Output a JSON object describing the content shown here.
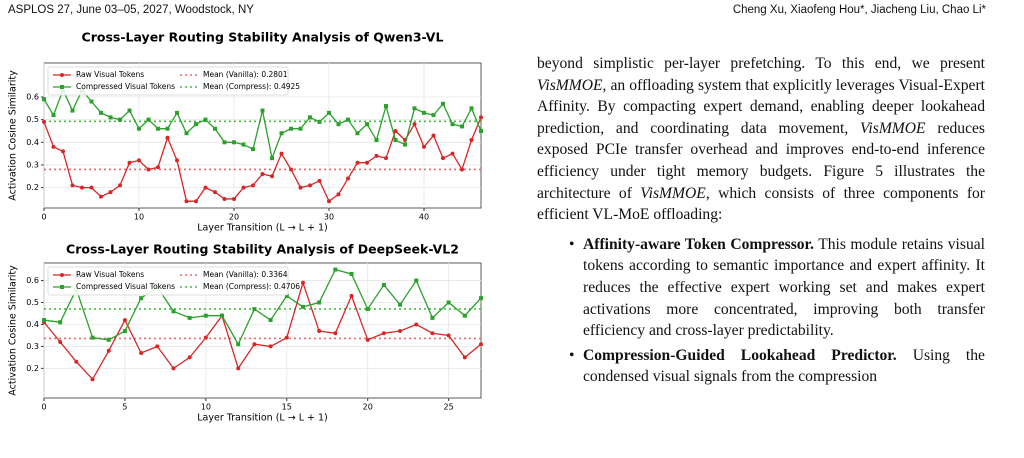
{
  "header": {
    "left": "ASPLOS 27, June 03–05, 2027, Woodstock, NY",
    "right": "Cheng Xu, Xiaofeng Hou*, Jiacheng Liu, Chao Li*"
  },
  "chart_data": [
    {
      "type": "line",
      "title": "Cross-Layer Routing Stability Analysis of Qwen3-VL",
      "x_label": "Layer Transition (L → L + 1)",
      "y_label": "Activation Cosine Similarity",
      "x": [
        0,
        1,
        2,
        3,
        4,
        5,
        6,
        7,
        8,
        9,
        10,
        11,
        12,
        13,
        14,
        15,
        16,
        17,
        18,
        19,
        20,
        21,
        22,
        23,
        24,
        25,
        26,
        27,
        28,
        29,
        30,
        31,
        32,
        33,
        34,
        35,
        36,
        37,
        38,
        39,
        40,
        41,
        42,
        43,
        44,
        45,
        46
      ],
      "series": [
        {
          "name": "Raw Visual Tokens",
          "color": "#d62728",
          "marker": "circle",
          "values": [
            0.49,
            0.38,
            0.36,
            0.21,
            0.2,
            0.2,
            0.16,
            0.18,
            0.21,
            0.31,
            0.32,
            0.28,
            0.29,
            0.42,
            0.32,
            0.14,
            0.14,
            0.2,
            0.18,
            0.15,
            0.15,
            0.2,
            0.21,
            0.26,
            0.25,
            0.35,
            0.28,
            0.2,
            0.21,
            0.23,
            0.14,
            0.17,
            0.24,
            0.31,
            0.31,
            0.34,
            0.33,
            0.45,
            0.41,
            0.48,
            0.38,
            0.43,
            0.33,
            0.35,
            0.28,
            0.41,
            0.51
          ]
        },
        {
          "name": "Compressed Visual Tokens",
          "color": "#2ca02c",
          "marker": "square",
          "values": [
            0.59,
            0.52,
            0.63,
            0.54,
            0.63,
            0.58,
            0.53,
            0.51,
            0.5,
            0.54,
            0.46,
            0.5,
            0.46,
            0.46,
            0.53,
            0.44,
            0.48,
            0.5,
            0.46,
            0.4,
            0.4,
            0.39,
            0.37,
            0.54,
            0.33,
            0.44,
            0.46,
            0.46,
            0.51,
            0.49,
            0.53,
            0.48,
            0.5,
            0.44,
            0.48,
            0.41,
            0.56,
            0.41,
            0.39,
            0.55,
            0.53,
            0.52,
            0.57,
            0.48,
            0.47,
            0.55,
            0.45
          ]
        }
      ],
      "mean_lines": [
        {
          "name": "Mean (Vanilla): 0.2801",
          "value": 0.2801,
          "color": "#e8696a"
        },
        {
          "name": "Mean (Compress): 0.4925",
          "value": 0.4925,
          "color": "#4cb84c"
        }
      ],
      "xlim": [
        0,
        46
      ],
      "ylim": [
        0.11,
        0.75
      ],
      "xticks": [
        0,
        10,
        20,
        30,
        40
      ],
      "yticks": [
        0.2,
        0.3,
        0.4,
        0.5,
        0.6
      ],
      "grid": true,
      "legend": "upper-left"
    },
    {
      "type": "line",
      "title": "Cross-Layer Routing Stability Analysis of DeepSeek-VL2",
      "x_label": "Layer Transition (L → L + 1)",
      "y_label": "Activation Cosine Similarity",
      "x": [
        0,
        1,
        2,
        3,
        4,
        5,
        6,
        7,
        8,
        9,
        10,
        11,
        12,
        13,
        14,
        15,
        16,
        17,
        18,
        19,
        20,
        21,
        22,
        23,
        24,
        25,
        26,
        27
      ],
      "series": [
        {
          "name": "Raw Visual Tokens",
          "color": "#d62728",
          "marker": "circle",
          "values": [
            0.41,
            0.32,
            0.23,
            0.15,
            0.28,
            0.42,
            0.27,
            0.3,
            0.2,
            0.25,
            0.34,
            0.44,
            0.2,
            0.31,
            0.3,
            0.34,
            0.59,
            0.37,
            0.36,
            0.53,
            0.33,
            0.36,
            0.37,
            0.4,
            0.36,
            0.35,
            0.25,
            0.31
          ]
        },
        {
          "name": "Compressed Visual Tokens",
          "color": "#2ca02c",
          "marker": "square",
          "values": [
            0.42,
            0.41,
            0.56,
            0.34,
            0.33,
            0.37,
            0.52,
            0.57,
            0.46,
            0.43,
            0.44,
            0.44,
            0.31,
            0.47,
            0.42,
            0.53,
            0.48,
            0.5,
            0.65,
            0.63,
            0.47,
            0.58,
            0.49,
            0.6,
            0.43,
            0.5,
            0.44,
            0.52
          ]
        }
      ],
      "mean_lines": [
        {
          "name": "Mean (Vanilla): 0.3364",
          "value": 0.3364,
          "color": "#e8696a"
        },
        {
          "name": "Mean (Compress): 0.4706",
          "value": 0.4706,
          "color": "#4cb84c"
        }
      ],
      "xlim": [
        0,
        27
      ],
      "ylim": [
        0.065,
        0.68
      ],
      "xticks": [
        0,
        5,
        10,
        15,
        20,
        25
      ],
      "yticks": [
        0.2,
        0.3,
        0.4,
        0.5,
        0.6
      ],
      "grid": true,
      "legend": "upper-left"
    }
  ],
  "body": {
    "paragraph": [
      "beyond simplistic per-layer prefetching. To this end, we present ",
      "VisMMOE",
      ", an offloading system that explicitly leverages Visual-Expert Affinity. By compacting expert demand, enabling deeper lookahead prediction, and coordinating data movement, ",
      "VisMMOE",
      " reduces exposed PCIe transfer overhead and improves end-to-end inference efficiency under tight memory budgets. Figure 5 illustrates the architecture of ",
      "VisMMOE",
      ", which consists of three components for efficient VL-MoE offloading:"
    ],
    "bullets": [
      {
        "title": "Affinity-aware Token Compressor.",
        "text": "This module retains visual tokens according to semantic importance and expert affinity. It reduces the effective expert working set and makes expert activations more concentrated, improving both transfer efficiency and cross-layer predictability."
      },
      {
        "title": "Compression-Guided Lookahead Predictor.",
        "text": "Using the condensed visual signals from the compression"
      }
    ]
  }
}
